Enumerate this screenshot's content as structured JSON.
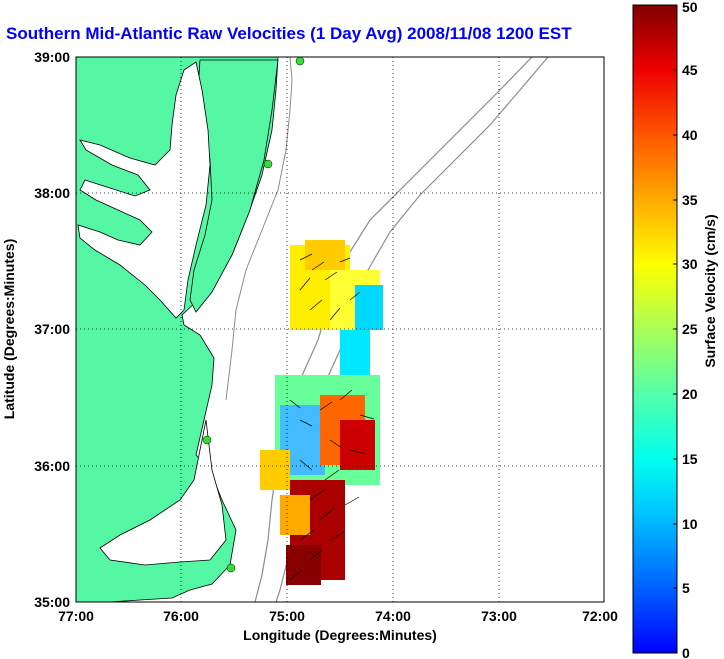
{
  "title": "Southern Mid-Atlantic Raw Velocities (1 Day Avg) 2008/11/08 1200 EST",
  "title_color": "#0000ff",
  "xaxis": {
    "label": "Longitude (Degrees:Minutes)",
    "ticks": [
      "77:00",
      "76:00",
      "75:00",
      "74:00",
      "73:00",
      "72:00"
    ]
  },
  "yaxis": {
    "label": "Latitude (Degrees:Minutes)",
    "ticks": [
      "35:00",
      "36:00",
      "37:00",
      "38:00",
      "39:00"
    ]
  },
  "colorbar": {
    "label": "Surface Velocity (cm/s)",
    "ticks": [
      "0",
      "5",
      "10",
      "15",
      "20",
      "25",
      "30",
      "35",
      "40",
      "45",
      "50"
    ],
    "min": 0,
    "max": 50
  },
  "colors": {
    "land": "#55f7a5",
    "water": "#ffffff",
    "coastline": "#000000",
    "bathymetry": "#8c8c8c",
    "grid": "#000000",
    "stations": "#33dd33"
  },
  "chart_data": {
    "type": "heatmap",
    "x_range_deg_west": [
      77,
      72
    ],
    "y_range_deg_north": [
      35,
      39
    ],
    "grid": "dotted",
    "colorbar_range": [
      0,
      50
    ],
    "colorbar_unit": "cm/s"
  }
}
